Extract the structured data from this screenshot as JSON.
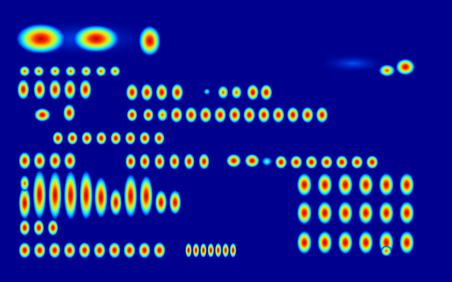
{
  "image": {
    "kind": "false-color intensity map",
    "palette": "jet",
    "colors": {
      "background": "#00008f",
      "low": "#0050ff",
      "mid_low": "#00e0ff",
      "mid": "#a0ff60",
      "mid_high": "#ffd000",
      "high": "#ff3000",
      "peak": "#c00000"
    }
  }
}
